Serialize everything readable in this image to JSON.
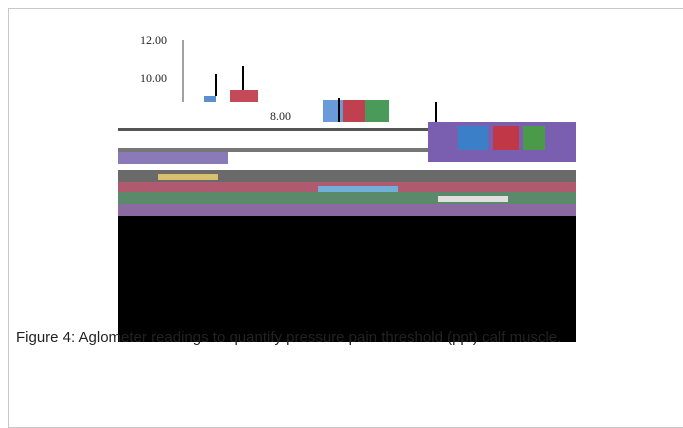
{
  "figure": {
    "tick_labels": [
      "12.00",
      "10.00",
      "8.00"
    ],
    "caption": "Figure 4:  Aglometer readings to quantify pressure pain threshold (ppt) calf muscle."
  }
}
